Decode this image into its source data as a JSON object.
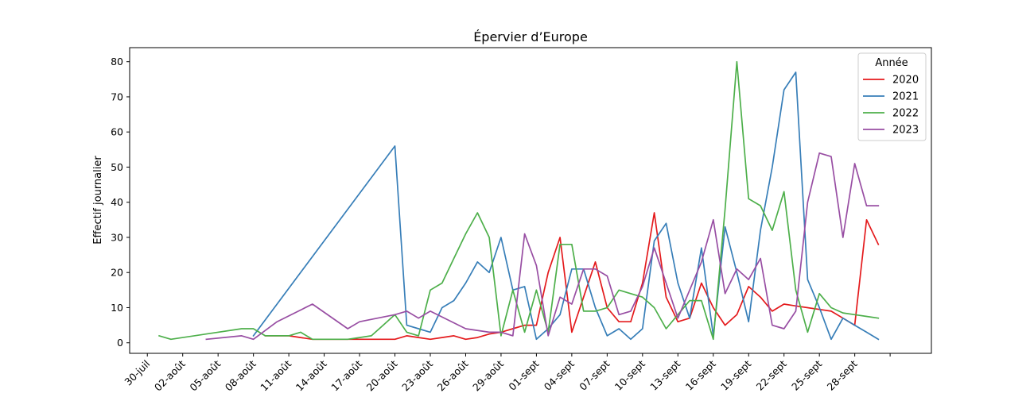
{
  "chart_data": {
    "type": "line",
    "title": "Épervier d’Europe",
    "xlabel": "",
    "ylabel": "Effectif journalier",
    "xlim": [
      -5.5,
      62.5
    ],
    "ylim": [
      -3,
      84
    ],
    "x_ticks": [
      {
        "x": -4,
        "label": "30-juil"
      },
      {
        "x": -1,
        "label": "02-août"
      },
      {
        "x": 2,
        "label": "05-août"
      },
      {
        "x": 5,
        "label": "08-août"
      },
      {
        "x": 8,
        "label": "11-août"
      },
      {
        "x": 11,
        "label": "14-août"
      },
      {
        "x": 14,
        "label": "17-août"
      },
      {
        "x": 17,
        "label": "20-août"
      },
      {
        "x": 20,
        "label": "23-août"
      },
      {
        "x": 23,
        "label": "26-août"
      },
      {
        "x": 26,
        "label": "29-août"
      },
      {
        "x": 29,
        "label": "01-sept"
      },
      {
        "x": 32,
        "label": "04-sept"
      },
      {
        "x": 35,
        "label": "07-sept"
      },
      {
        "x": 38,
        "label": "10-sept"
      },
      {
        "x": 41,
        "label": "13-sept"
      },
      {
        "x": 44,
        "label": "16-sept"
      },
      {
        "x": 47,
        "label": "19-sept"
      },
      {
        "x": 50,
        "label": "22-sept"
      },
      {
        "x": 53,
        "label": "25-sept"
      },
      {
        "x": 56,
        "label": "28-sept"
      },
      {
        "x": 59,
        "label": ""
      }
    ],
    "y_ticks": [
      0,
      10,
      20,
      30,
      40,
      50,
      60,
      70,
      80
    ],
    "legend": {
      "title": "Année",
      "position": "top-right"
    },
    "series": [
      {
        "name": "2020",
        "color": "#e41a1c",
        "x": [
          6,
          8,
          9,
          10,
          11,
          12,
          13,
          14,
          15,
          16,
          17,
          18,
          19,
          20,
          21,
          22,
          23,
          24,
          25,
          26,
          27,
          28,
          29,
          30,
          31,
          32,
          33,
          34,
          35,
          36,
          37,
          38,
          39,
          40,
          41,
          42,
          43,
          44,
          45,
          46,
          47,
          48,
          49,
          50,
          51,
          52,
          53,
          54,
          55,
          56,
          57,
          58
        ],
        "y": [
          2,
          2,
          1.5,
          1,
          1,
          1,
          1,
          1,
          1,
          1,
          1,
          2,
          1.5,
          1,
          1.5,
          2,
          1,
          1.5,
          2.5,
          3,
          4,
          5,
          5,
          20,
          30,
          3,
          13,
          23,
          10,
          6,
          6,
          17,
          37,
          13,
          6,
          7,
          17,
          10,
          5,
          8,
          16,
          13,
          9,
          11,
          10.5,
          10,
          9.5,
          9,
          7,
          5,
          35,
          28
        ]
      },
      {
        "name": "2021",
        "color": "#377eb8",
        "x": [
          5,
          17,
          18,
          19,
          20,
          21,
          22,
          23,
          24,
          25,
          26,
          27,
          28,
          29,
          30,
          31,
          32,
          33,
          34,
          35,
          36,
          37,
          38,
          39,
          40,
          41,
          42,
          43,
          44,
          45,
          46,
          47,
          48,
          49,
          50,
          51,
          52,
          53,
          54,
          55,
          56,
          57,
          58
        ],
        "y": [
          2,
          56,
          5,
          4,
          3,
          10,
          12,
          17,
          23,
          20,
          30,
          15,
          16,
          1,
          4,
          8,
          21,
          21,
          10,
          2,
          4,
          1,
          4,
          29,
          34,
          17,
          7,
          27,
          2,
          33,
          20,
          6,
          32,
          50,
          72,
          77,
          18,
          10,
          1,
          7,
          5,
          3,
          1
        ]
      },
      {
        "name": "2022",
        "color": "#4daf4a",
        "x": [
          -3,
          -2,
          4,
          5,
          6,
          7,
          8,
          9,
          10,
          11,
          12,
          13,
          14,
          15,
          16,
          17,
          18,
          19,
          20,
          21,
          22,
          23,
          24,
          25,
          26,
          27,
          28,
          29,
          30,
          31,
          32,
          33,
          34,
          35,
          36,
          37,
          38,
          39,
          40,
          41,
          42,
          43,
          44,
          45,
          46,
          47,
          48,
          49,
          50,
          51,
          52,
          53,
          54,
          55,
          56,
          57,
          58
        ],
        "y": [
          2,
          1,
          4,
          4,
          2,
          2,
          2,
          3,
          1,
          1,
          1,
          1,
          1.5,
          2,
          5,
          8,
          3,
          2,
          15,
          17,
          24,
          31,
          37,
          30,
          2,
          15,
          3,
          15,
          3,
          28,
          28,
          9,
          9,
          10,
          15,
          14,
          13,
          10,
          4,
          8,
          12,
          12,
          1,
          38,
          80,
          41,
          39,
          32,
          43,
          15,
          3,
          14,
          10,
          8.5,
          8,
          7.5,
          7
        ]
      },
      {
        "name": "2023",
        "color": "#984ea3",
        "x": [
          1,
          4,
          5,
          7,
          10,
          13,
          14,
          17,
          18,
          19,
          20,
          23,
          25,
          26,
          27,
          28,
          29,
          30,
          31,
          32,
          33,
          34,
          35,
          36,
          37,
          38,
          39,
          40,
          41,
          42,
          43,
          44,
          45,
          46,
          47,
          48,
          49,
          50,
          51,
          52,
          53,
          54,
          55,
          56,
          57,
          58
        ],
        "y": [
          1,
          2,
          1,
          6,
          11,
          4,
          6,
          8,
          9,
          7,
          9,
          4,
          3,
          3,
          2,
          31,
          22,
          2,
          13,
          11,
          21,
          21,
          19,
          8,
          9,
          16,
          27,
          17,
          7,
          15,
          23,
          35,
          14,
          21,
          18,
          24,
          5,
          4,
          9,
          40,
          54,
          53,
          30,
          51,
          39,
          39
        ]
      }
    ]
  }
}
